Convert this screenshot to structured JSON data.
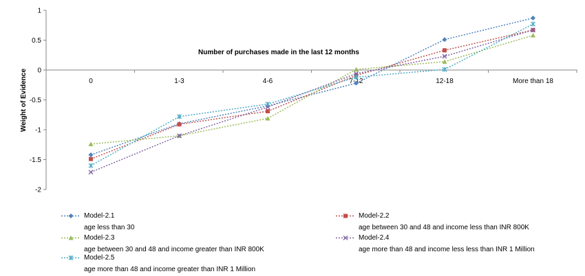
{
  "chart_data": {
    "type": "line",
    "title": "Number of purchases made in the last 12 months",
    "xlabel": "",
    "ylabel": "Weight of Evidence",
    "categories": [
      "0",
      "1-3",
      "4-6",
      "7-12",
      "12-18",
      "More than 18"
    ],
    "ylim": [
      -2,
      1
    ],
    "yticks": [
      "-2",
      "-1.5",
      "-1",
      "-0.5",
      "0",
      "0.5",
      "1"
    ],
    "grid": false,
    "legend_position": "bottom",
    "series": [
      {
        "name": "Model-2.1",
        "description": "age less than 30",
        "color": "#4f81bd",
        "marker": "diamond",
        "values": [
          -1.42,
          -0.9,
          -0.6,
          -0.22,
          0.51,
          0.87
        ]
      },
      {
        "name": "Model-2.2",
        "description": "age between 30 and 48 and income less than INR 800K",
        "color": "#c0504d",
        "marker": "square",
        "values": [
          -1.49,
          -0.91,
          -0.69,
          -0.09,
          0.33,
          0.67
        ]
      },
      {
        "name": "Model-2.3",
        "description": "age between 30 and 48 and income greater than INR 800K",
        "color": "#9bbb59",
        "marker": "triangle",
        "values": [
          -1.24,
          -1.1,
          -0.81,
          0.01,
          0.14,
          0.58
        ]
      },
      {
        "name": "Model-2.4",
        "description": "age more than 48 and income less less than INR 1 Million",
        "color": "#8064a2",
        "marker": "x",
        "values": [
          -1.71,
          -1.1,
          -0.62,
          -0.06,
          0.23,
          0.67
        ]
      },
      {
        "name": "Model-2.5",
        "description": "age more than 48 and income greater than INR 1 Million",
        "color": "#4bacc6",
        "marker": "star",
        "values": [
          -1.6,
          -0.78,
          -0.57,
          -0.12,
          0.01,
          0.77
        ]
      }
    ]
  }
}
